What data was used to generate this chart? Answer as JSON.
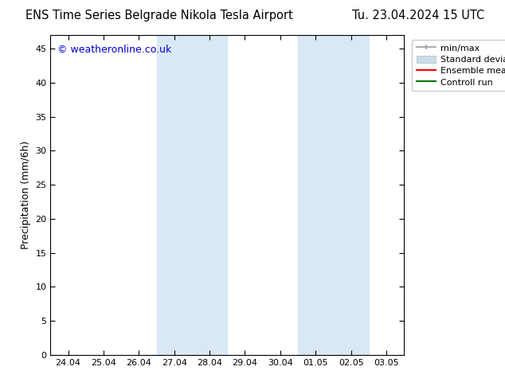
{
  "title_left": "ENS Time Series Belgrade Nikola Tesla Airport",
  "title_right": "Tu. 23.04.2024 15 UTC",
  "ylabel": "Precipitation (mm/6h)",
  "watermark": "© weatheronline.co.uk",
  "x_tick_labels": [
    "24.04",
    "25.04",
    "26.04",
    "27.04",
    "28.04",
    "29.04",
    "30.04",
    "01.05",
    "02.05",
    "03.05"
  ],
  "x_tick_positions": [
    0,
    1,
    2,
    3,
    4,
    5,
    6,
    7,
    8,
    9
  ],
  "ylim": [
    0,
    47
  ],
  "yticks": [
    0,
    5,
    10,
    15,
    20,
    25,
    30,
    35,
    40,
    45
  ],
  "xlim": [
    -0.5,
    9.5
  ],
  "shaded_regions": [
    {
      "x_start": 2.5,
      "x_end": 4.5,
      "color": "#dae8f5"
    },
    {
      "x_start": 6.5,
      "x_end": 8.5,
      "color": "#dae8f5"
    }
  ],
  "legend_entries": [
    {
      "label": "min/max",
      "color": "#aaaaaa",
      "lw": 1.2,
      "style": "line_with_caps"
    },
    {
      "label": "Standard deviation",
      "color": "#ccdde8",
      "lw": 8,
      "style": "thick"
    },
    {
      "label": "Ensemble mean run",
      "color": "#ff0000",
      "lw": 1.5,
      "style": "line"
    },
    {
      "label": "Controll run",
      "color": "#007700",
      "lw": 1.5,
      "style": "line"
    }
  ],
  "background_color": "#ffffff",
  "plot_bg_color": "#ffffff",
  "watermark_color": "#0000cc",
  "title_fontsize": 10.5,
  "axis_label_fontsize": 9,
  "tick_fontsize": 8,
  "legend_fontsize": 8
}
